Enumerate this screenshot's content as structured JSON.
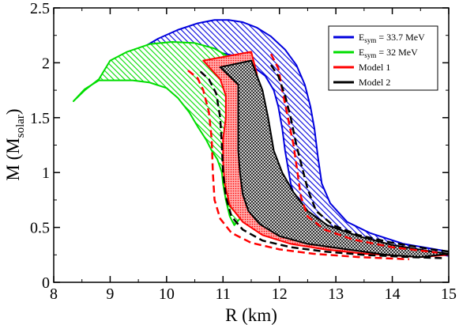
{
  "chart_data": {
    "type": "area",
    "xlabel": "R (km)",
    "ylabel": "M (M",
    "ylabel_sub": "solar",
    "ylabel_end": ")",
    "xlim": [
      8,
      15
    ],
    "ylim": [
      0,
      2.5
    ],
    "x_ticks": [
      "8",
      "9",
      "10",
      "11",
      "12",
      "13",
      "14",
      "15"
    ],
    "y_ticks": [
      "0",
      "0.5",
      "1",
      "1.5",
      "2",
      "2.5"
    ],
    "legend_position": "top-right",
    "legend": [
      {
        "label": "E",
        "sub": "sym",
        "suffix": " = 33.7 MeV",
        "color": "#0000dd"
      },
      {
        "label": "E",
        "sub": "sym",
        "suffix": " = 32 MeV",
        "color": "#00dd00"
      },
      {
        "label": "Model 1",
        "sub": "",
        "suffix": "",
        "color": "#ff0000"
      },
      {
        "label": "Model 2",
        "sub": "",
        "suffix": "",
        "color": "#000000"
      }
    ],
    "series": [
      {
        "name": "Esym = 33.7 MeV",
        "style": "hatched-band",
        "color": "#0000dd",
        "outer_edge": [
          [
            9.55,
            2.13
          ],
          [
            9.85,
            2.22
          ],
          [
            10.2,
            2.3
          ],
          [
            10.55,
            2.36
          ],
          [
            10.85,
            2.39
          ],
          [
            11.1,
            2.39
          ],
          [
            11.35,
            2.37
          ],
          [
            11.6,
            2.32
          ],
          [
            11.85,
            2.24
          ],
          [
            12.1,
            2.12
          ],
          [
            12.3,
            1.98
          ],
          [
            12.45,
            1.8
          ],
          [
            12.55,
            1.6
          ],
          [
            12.62,
            1.4
          ],
          [
            12.68,
            1.15
          ],
          [
            12.75,
            0.9
          ],
          [
            12.9,
            0.72
          ],
          [
            13.2,
            0.55
          ],
          [
            13.6,
            0.45
          ],
          [
            14.2,
            0.35
          ],
          [
            15,
            0.28
          ]
        ],
        "inner_edge": [
          [
            15,
            0.24
          ],
          [
            14.3,
            0.3
          ],
          [
            13.7,
            0.35
          ],
          [
            13.2,
            0.4
          ],
          [
            12.85,
            0.45
          ],
          [
            12.6,
            0.52
          ],
          [
            12.4,
            0.62
          ],
          [
            12.28,
            0.75
          ],
          [
            12.2,
            0.9
          ],
          [
            12.15,
            1.05
          ],
          [
            12.1,
            1.2
          ],
          [
            12.05,
            1.4
          ],
          [
            11.98,
            1.6
          ],
          [
            11.9,
            1.75
          ],
          [
            11.75,
            1.88
          ],
          [
            11.5,
            1.98
          ],
          [
            11.15,
            2.07
          ],
          [
            10.7,
            2.12
          ],
          [
            10.2,
            2.13
          ],
          [
            9.8,
            2.13
          ],
          [
            9.55,
            2.13
          ]
        ]
      },
      {
        "name": "Esym = 32 MeV",
        "style": "hatched-band",
        "color": "#00dd00",
        "outer_edge": [
          [
            8.35,
            1.65
          ],
          [
            8.55,
            1.75
          ],
          [
            8.8,
            1.85
          ],
          [
            9.0,
            2.02
          ],
          [
            9.3,
            2.1
          ],
          [
            9.7,
            2.17
          ],
          [
            10.1,
            2.19
          ],
          [
            10.5,
            2.18
          ],
          [
            10.85,
            2.13
          ],
          [
            11.15,
            2.04
          ],
          [
            11.4,
            1.9
          ],
          [
            11.55,
            1.72
          ],
          [
            11.62,
            1.5
          ],
          [
            11.6,
            1.22
          ],
          [
            11.55,
            1.0
          ],
          [
            11.45,
            0.78
          ],
          [
            11.3,
            0.58
          ],
          [
            11.2,
            0.52
          ]
        ],
        "inner_edge": [
          [
            11.2,
            0.52
          ],
          [
            11.12,
            0.6
          ],
          [
            11.05,
            0.75
          ],
          [
            11.0,
            0.9
          ],
          [
            10.98,
            1.0
          ],
          [
            10.9,
            1.12
          ],
          [
            10.8,
            1.2
          ],
          [
            10.7,
            1.3
          ],
          [
            10.55,
            1.42
          ],
          [
            10.4,
            1.55
          ],
          [
            10.2,
            1.68
          ],
          [
            10.0,
            1.77
          ],
          [
            9.7,
            1.82
          ],
          [
            9.4,
            1.84
          ],
          [
            9.1,
            1.84
          ],
          [
            8.8,
            1.84
          ],
          [
            8.55,
            1.76
          ],
          [
            8.35,
            1.65
          ]
        ]
      },
      {
        "name": "Model 1",
        "style": "dotted-band",
        "color": "#ff0000",
        "band": [
          [
            10.65,
            2.02
          ],
          [
            11.5,
            2.1
          ],
          [
            11.6,
            1.9
          ],
          [
            11.62,
            1.6
          ],
          [
            11.55,
            1.4
          ],
          [
            11.58,
            1.2
          ],
          [
            11.68,
            1.0
          ],
          [
            11.85,
            0.8
          ],
          [
            12.15,
            0.6
          ],
          [
            12.5,
            0.48
          ],
          [
            13.0,
            0.4
          ],
          [
            13.8,
            0.33
          ],
          [
            14.5,
            0.27
          ],
          [
            15,
            0.25
          ],
          [
            14.5,
            0.23
          ],
          [
            13.5,
            0.26
          ],
          [
            12.8,
            0.3
          ],
          [
            12.2,
            0.35
          ],
          [
            11.7,
            0.43
          ],
          [
            11.35,
            0.55
          ],
          [
            11.12,
            0.7
          ],
          [
            11.03,
            0.9
          ],
          [
            11.0,
            1.1
          ],
          [
            11.0,
            1.3
          ],
          [
            11.05,
            1.5
          ],
          [
            11.05,
            1.7
          ],
          [
            10.95,
            1.85
          ],
          [
            10.65,
            2.02
          ]
        ]
      },
      {
        "name": "Model 2",
        "style": "crosshatch-band",
        "color": "#000000",
        "band": [
          [
            10.95,
            1.96
          ],
          [
            11.5,
            2.02
          ],
          [
            11.7,
            1.75
          ],
          [
            11.8,
            1.5
          ],
          [
            11.85,
            1.35
          ],
          [
            11.9,
            1.2
          ],
          [
            12.05,
            1.0
          ],
          [
            12.25,
            0.82
          ],
          [
            12.5,
            0.65
          ],
          [
            12.85,
            0.52
          ],
          [
            13.4,
            0.42
          ],
          [
            14.0,
            0.34
          ],
          [
            14.7,
            0.28
          ],
          [
            15,
            0.26
          ],
          [
            14.5,
            0.23
          ],
          [
            13.9,
            0.25
          ],
          [
            13.2,
            0.3
          ],
          [
            12.5,
            0.35
          ],
          [
            12.0,
            0.42
          ],
          [
            11.65,
            0.53
          ],
          [
            11.45,
            0.65
          ],
          [
            11.35,
            0.8
          ],
          [
            11.3,
            1.0
          ],
          [
            11.27,
            1.2
          ],
          [
            11.27,
            1.4
          ],
          [
            11.27,
            1.6
          ],
          [
            11.27,
            1.8
          ],
          [
            10.95,
            1.96
          ]
        ]
      },
      {
        "name": "Model 1",
        "style": "dashed",
        "color": "#ff0000",
        "points": [
          [
            10.38,
            1.93
          ],
          [
            10.55,
            1.86
          ],
          [
            10.65,
            1.75
          ],
          [
            10.75,
            1.55
          ],
          [
            10.8,
            1.3
          ],
          [
            10.82,
            1.0
          ],
          [
            10.85,
            0.75
          ],
          [
            10.95,
            0.58
          ],
          [
            11.15,
            0.45
          ],
          [
            11.5,
            0.36
          ],
          [
            12.0,
            0.3
          ],
          [
            12.6,
            0.26
          ],
          [
            13.4,
            0.23
          ],
          [
            14.3,
            0.21
          ]
        ]
      },
      {
        "name": "Model 1",
        "style": "dashed",
        "color": "#ff0000",
        "points": [
          [
            11.85,
            2.08
          ],
          [
            11.98,
            1.95
          ],
          [
            12.05,
            1.75
          ],
          [
            12.15,
            1.5
          ],
          [
            12.25,
            1.25
          ],
          [
            12.32,
            1.0
          ],
          [
            12.38,
            0.78
          ],
          [
            12.5,
            0.6
          ],
          [
            12.8,
            0.48
          ],
          [
            13.3,
            0.39
          ],
          [
            14.0,
            0.32
          ],
          [
            14.8,
            0.27
          ]
        ]
      },
      {
        "name": "Model 2",
        "style": "dashed",
        "color": "#000000",
        "points": [
          [
            10.6,
            1.92
          ],
          [
            10.75,
            1.85
          ],
          [
            10.88,
            1.72
          ],
          [
            10.95,
            1.5
          ],
          [
            10.98,
            1.25
          ],
          [
            11.0,
            1.0
          ],
          [
            11.05,
            0.78
          ],
          [
            11.15,
            0.6
          ],
          [
            11.35,
            0.48
          ],
          [
            11.7,
            0.38
          ],
          [
            12.2,
            0.32
          ],
          [
            12.8,
            0.28
          ],
          [
            13.5,
            0.25
          ],
          [
            14.3,
            0.23
          ],
          [
            14.9,
            0.22
          ]
        ]
      },
      {
        "name": "Model 2",
        "style": "dashed",
        "color": "#000000",
        "points": [
          [
            11.85,
            1.98
          ],
          [
            11.98,
            1.88
          ],
          [
            12.1,
            1.7
          ],
          [
            12.2,
            1.5
          ],
          [
            12.3,
            1.25
          ],
          [
            12.4,
            1.05
          ],
          [
            12.5,
            0.85
          ],
          [
            12.65,
            0.65
          ],
          [
            12.95,
            0.52
          ],
          [
            13.4,
            0.43
          ],
          [
            14.0,
            0.36
          ],
          [
            14.7,
            0.3
          ],
          [
            15,
            0.28
          ]
        ]
      }
    ]
  }
}
